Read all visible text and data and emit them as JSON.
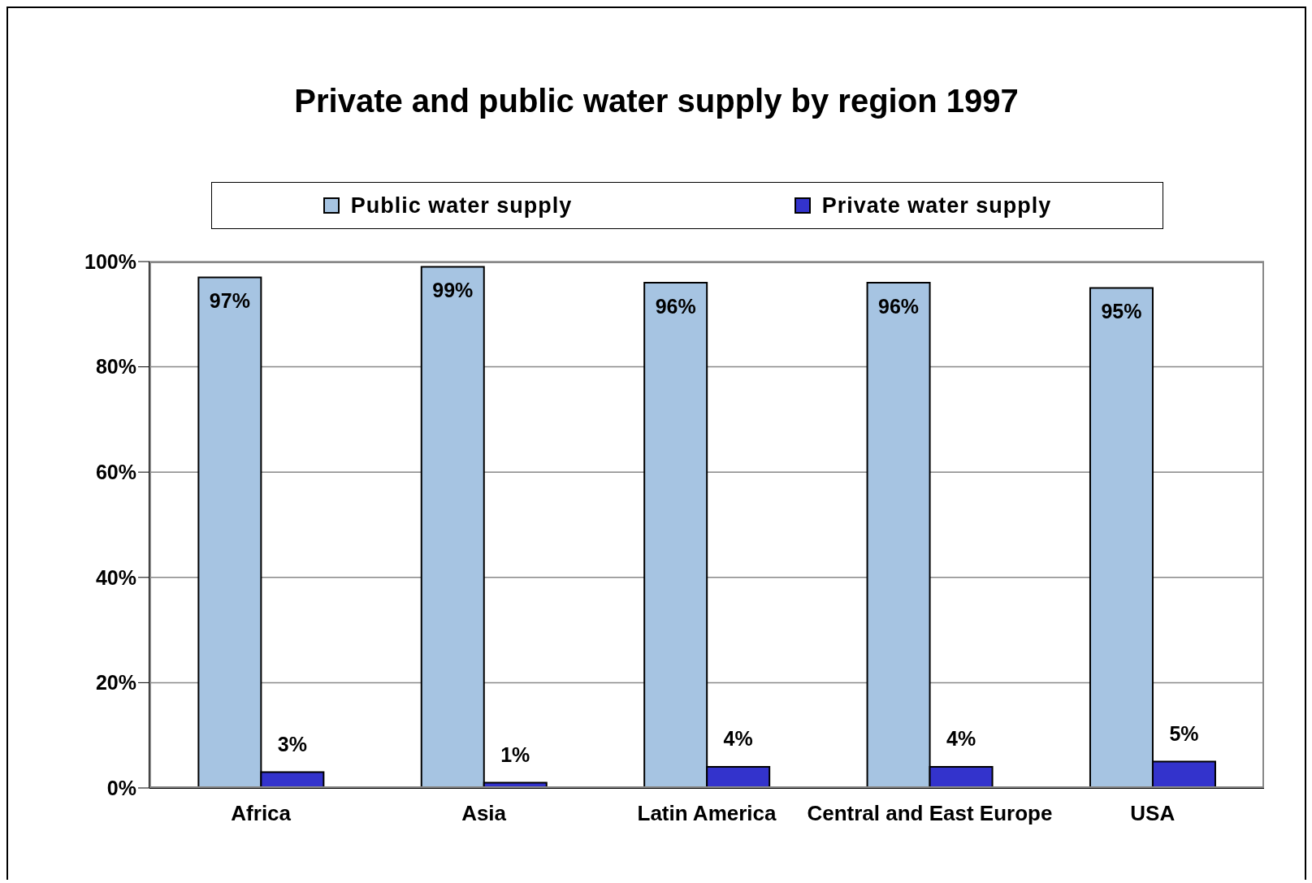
{
  "chart_data": {
    "type": "bar",
    "title": "Private and public water supply by region 1997",
    "categories": [
      "Africa",
      "Asia",
      "Latin America",
      "Central and East Europe",
      "USA"
    ],
    "series": [
      {
        "name": "Public water supply",
        "color": "#a6c4e2",
        "values": [
          97,
          99,
          96,
          96,
          95
        ],
        "value_labels": [
          "97%",
          "99%",
          "96%",
          "96%",
          "95%"
        ]
      },
      {
        "name": "Private water supply",
        "color": "#3333cc",
        "values": [
          3,
          1,
          4,
          4,
          5
        ],
        "value_labels": [
          "3%",
          "1%",
          "4%",
          "4%",
          "5%"
        ]
      }
    ],
    "ylim": [
      0,
      100
    ],
    "yticks": [
      {
        "value": 0,
        "label": "0%"
      },
      {
        "value": 20,
        "label": "20%"
      },
      {
        "value": 40,
        "label": "40%"
      },
      {
        "value": 60,
        "label": "60%"
      },
      {
        "value": 80,
        "label": "80%"
      },
      {
        "value": 100,
        "label": "100%"
      }
    ],
    "grid": "y",
    "legend": "top"
  }
}
